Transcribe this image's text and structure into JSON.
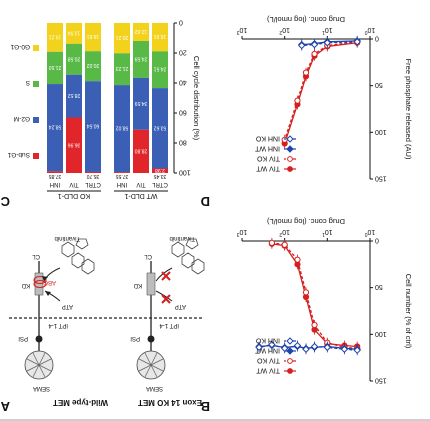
{
  "figure": {
    "panels": [
      "A",
      "B",
      "C",
      "D"
    ]
  },
  "panel_a": {
    "letter": "A",
    "left_title": "Wild-type MET",
    "right_title": "Exon 14 KO MET",
    "domains": [
      "SEMA",
      "PSI",
      "IPT 1-4",
      "KD",
      "CL"
    ],
    "left_mark": "ABC",
    "drug": "Tivantinib",
    "atp": "ATP"
  },
  "panel_b": {
    "letter": "B",
    "chart_data": {
      "type": "line",
      "xlabel": "Drug conc. (log nmol/L)",
      "ylabel": "Cell number (% of ctrl)",
      "x_ticks": [
        1,
        2,
        3,
        4
      ],
      "x_tick_labels": [
        "10",
        "10",
        "10",
        "10"
      ],
      "x_tick_exponents": [
        "0",
        "1",
        "2",
        "3"
      ],
      "xlim": [
        1,
        4
      ],
      "y_ticks": [
        0,
        50,
        100,
        150
      ],
      "ylim": [
        0,
        150
      ],
      "legend": "bottom-right",
      "series": [
        {
          "name": "TIV WT",
          "color": "#d62020",
          "marker": "filled-circle",
          "dash": false,
          "x": [
            1.3,
            1.6,
            2.0,
            2.3,
            2.5,
            2.7,
            3.0,
            3.3
          ],
          "y": [
            113,
            112,
            110,
            95,
            60,
            25,
            5,
            3
          ]
        },
        {
          "name": "TIV KO",
          "color": "#d62020",
          "marker": "open-circle",
          "dash": true,
          "x": [
            1.3,
            1.6,
            2.0,
            2.3,
            2.5,
            2.7,
            3.0,
            3.3
          ],
          "y": [
            115,
            114,
            109,
            90,
            55,
            20,
            4,
            2
          ]
        },
        {
          "name": "INH WT",
          "color": "#2044a8",
          "marker": "filled-diamond",
          "dash": false,
          "x": [
            1.3,
            1.6,
            2.0,
            2.3,
            2.5,
            2.7,
            3.0,
            3.3,
            3.6
          ],
          "y": [
            116,
            115,
            113,
            114,
            115,
            113,
            114,
            112,
            113
          ]
        },
        {
          "name": "INH KO",
          "color": "#2044a8",
          "marker": "open-diamond",
          "dash": true,
          "x": [
            1.3,
            1.6,
            2.0,
            2.3,
            2.5,
            2.7,
            3.0,
            3.3,
            3.6
          ],
          "y": [
            117,
            116,
            114,
            113,
            116,
            112,
            115,
            111,
            114
          ]
        }
      ]
    }
  },
  "panel_c": {
    "letter": "C",
    "chart_data": {
      "type": "bar",
      "ylabel": "Cell cycle distribution (%)",
      "y_ticks": [
        0,
        20,
        40,
        60,
        80,
        100
      ],
      "ylim": [
        0,
        100
      ],
      "group_titles": [
        "WT DLD-1",
        "KO DLD-1"
      ],
      "categories": [
        "CTRL",
        "TIV",
        "INH",
        "CTRL",
        "TIV",
        "INH"
      ],
      "top_labels": [
        "33.45",
        "",
        "37.55",
        "35.70",
        "",
        "37.85"
      ],
      "legend_labels": [
        "Sub-G1",
        "G2-M",
        "S",
        "G0-G1"
      ],
      "series": [
        {
          "name": "G0-G1",
          "color": "#f2d21b",
          "values": [
            18.9,
            12.0,
            20.2,
            18.8,
            13.9,
            19.2
          ],
          "labels": [
            "18.91",
            "12.02",
            "20.21",
            "18.81",
            "13.94",
            "19.21"
          ]
        },
        {
          "name": "S",
          "color": "#58b947",
          "values": [
            24.5,
            24.6,
            21.2,
            20.0,
            20.6,
            21.5
          ],
          "labels": [
            "24.51",
            "24.59",
            "21.23",
            "20.02",
            "20.58",
            "21.50"
          ]
        },
        {
          "name": "G2-M",
          "color": "#3a5fb5",
          "values": [
            53.6,
            34.6,
            58.0,
            60.5,
            28.5,
            58.2
          ],
          "labels": [
            "53.62",
            "34.59",
            "58.02",
            "60.54",
            "28.52",
            "58.24"
          ]
        },
        {
          "name": "Sub-G1",
          "color": "#e0252b",
          "values": [
            3.0,
            28.8,
            0.6,
            0.7,
            37.0,
            1.1
          ],
          "labels": [
            "2.98",
            "28.80",
            "",
            "",
            "36.96",
            ""
          ]
        }
      ]
    }
  },
  "panel_d": {
    "letter": "D",
    "chart_data": {
      "type": "line",
      "xlabel": "Drug conc. (log nmol/L)",
      "ylabel": "Free phosphate released (AU)",
      "x_ticks": [
        1,
        2,
        3,
        4
      ],
      "x_tick_labels": [
        "10",
        "10",
        "10",
        "10"
      ],
      "x_tick_exponents": [
        "0",
        "1",
        "2",
        "3"
      ],
      "xlim": [
        1,
        4
      ],
      "y_ticks": [
        0,
        50,
        100,
        150
      ],
      "ylim": [
        0,
        150
      ],
      "legend": "bottom-right",
      "series": [
        {
          "name": "TIV WT",
          "color": "#d62020",
          "marker": "filled-circle",
          "dash": false,
          "x": [
            1.3,
            2.0,
            2.3,
            2.5,
            2.7,
            3.0
          ],
          "y": [
            4,
            8,
            18,
            40,
            70,
            112
          ]
        },
        {
          "name": "TIV KO",
          "color": "#d62020",
          "marker": "open-circle",
          "dash": true,
          "x": [
            1.3,
            2.0,
            2.3,
            2.5,
            2.7,
            3.0
          ],
          "y": [
            3,
            7,
            16,
            36,
            66,
            108
          ]
        },
        {
          "name": "INH WT",
          "color": "#2044a8",
          "marker": "filled-diamond",
          "dash": false,
          "x": [
            1.3,
            2.0,
            2.3,
            2.6
          ],
          "y": [
            2,
            3,
            5,
            6
          ]
        },
        {
          "name": "INH KO",
          "color": "#2044a8",
          "marker": "open-diamond",
          "dash": true,
          "x": [
            1.3,
            2.0,
            2.3,
            2.6
          ],
          "y": [
            3,
            4,
            6,
            7
          ]
        }
      ]
    }
  }
}
